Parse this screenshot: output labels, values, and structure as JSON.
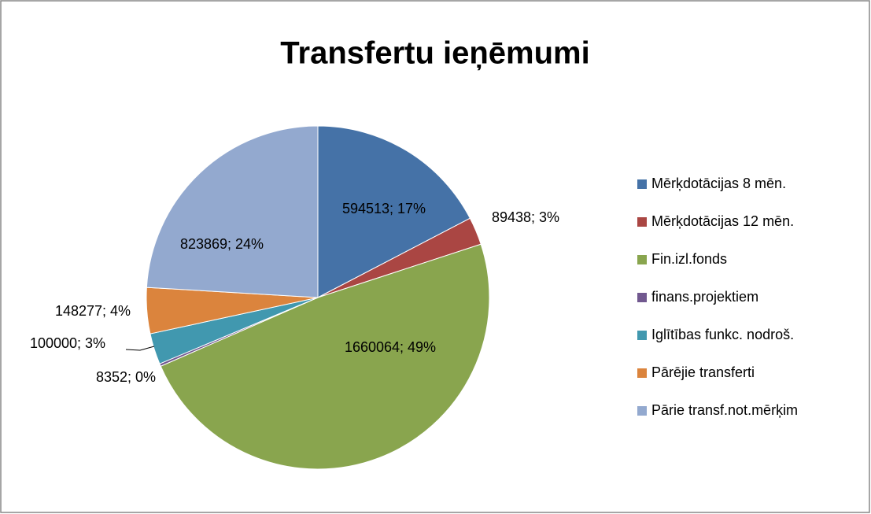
{
  "chart_data": {
    "type": "pie",
    "title": "Transfertu ieņēmumi",
    "categories": [
      "Mērķdotācijas 8 mēn.",
      "Mērķdotācijas 12 mēn.",
      "Fin.izl.fonds",
      "finans.projektiem",
      "Iglītības funkc. nodroš.",
      "Pārējie transferti",
      "Pārie transf.not.mērķim"
    ],
    "values": [
      594513,
      89438,
      1660064,
      8352,
      100000,
      148277,
      823869
    ],
    "value_labels": [
      "594513; 17%",
      "89438; 3%",
      "1660064; 49%",
      "8352; 0%",
      "100000; 3%",
      "148277; 4%",
      "823869; 24%"
    ],
    "colors": [
      "#4572a7",
      "#aa4643",
      "#89a54e",
      "#71588f",
      "#4198af",
      "#db843d",
      "#93a9cf"
    ],
    "legend": "right"
  }
}
